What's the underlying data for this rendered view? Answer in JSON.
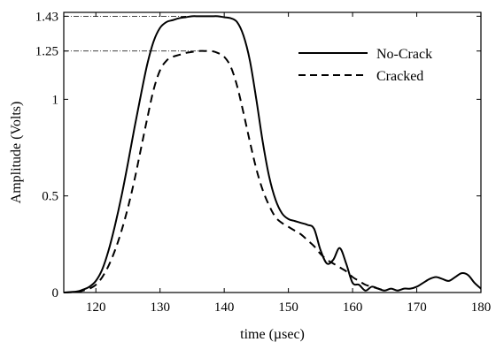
{
  "chart_data": {
    "type": "line",
    "title": "",
    "xlabel": "time (µsec)",
    "ylabel": "Amplitude  (Volts)",
    "xlim": [
      115,
      180
    ],
    "ylim": [
      0,
      1.45
    ],
    "grid": false,
    "legend_position": "top-right",
    "x_ticks": [
      {
        "value": 120,
        "label": "120"
      },
      {
        "value": 130,
        "label": "130"
      },
      {
        "value": 140,
        "label": "140"
      },
      {
        "value": 150,
        "label": "150"
      },
      {
        "value": 160,
        "label": "160"
      },
      {
        "value": 170,
        "label": "170"
      },
      {
        "value": 180,
        "label": "180"
      }
    ],
    "y_ticks": [
      {
        "value": 0,
        "label": "0"
      },
      {
        "value": 0.5,
        "label": "0.5"
      },
      {
        "value": 1,
        "label": "1"
      },
      {
        "value": 1.25,
        "label": "1.25"
      },
      {
        "value": 1.43,
        "label": "1.43"
      }
    ],
    "annotations": [
      {
        "y": 1.43,
        "x_end": 137
      },
      {
        "y": 1.25,
        "x_end": 137
      }
    ],
    "series": [
      {
        "name": "No-Crack",
        "style": "solid",
        "color": "#000000",
        "x": [
          115,
          117,
          118,
          119,
          120,
          121,
          122,
          123,
          124,
          125,
          126,
          127,
          128,
          129,
          130,
          131,
          132,
          133,
          134,
          135,
          136,
          137,
          138,
          139,
          140,
          141,
          142,
          143,
          144,
          145,
          146,
          147,
          148,
          149,
          150,
          151,
          152,
          153,
          154,
          155,
          156,
          157,
          158,
          159,
          160,
          161,
          162,
          163,
          164,
          165,
          166,
          167,
          168,
          169,
          170,
          171,
          172,
          173,
          174,
          175,
          176,
          177,
          178,
          179,
          180
        ],
        "y": [
          0,
          0.005,
          0.015,
          0.03,
          0.06,
          0.12,
          0.22,
          0.35,
          0.5,
          0.67,
          0.85,
          1.02,
          1.18,
          1.3,
          1.37,
          1.4,
          1.41,
          1.42,
          1.425,
          1.43,
          1.43,
          1.43,
          1.43,
          1.43,
          1.425,
          1.42,
          1.4,
          1.33,
          1.2,
          1.0,
          0.78,
          0.6,
          0.48,
          0.41,
          0.38,
          0.37,
          0.36,
          0.35,
          0.33,
          0.22,
          0.15,
          0.17,
          0.23,
          0.15,
          0.05,
          0.04,
          0.01,
          0.03,
          0.02,
          0.01,
          0.02,
          0.01,
          0.02,
          0.02,
          0.03,
          0.05,
          0.07,
          0.08,
          0.07,
          0.06,
          0.08,
          0.1,
          0.09,
          0.05,
          0.02
        ]
      },
      {
        "name": "Cracked",
        "style": "dashed",
        "color": "#000000",
        "x": [
          115,
          117,
          118,
          119,
          120,
          121,
          122,
          123,
          124,
          125,
          126,
          127,
          128,
          129,
          130,
          131,
          132,
          133,
          134,
          135,
          136,
          137,
          138,
          139,
          140,
          141,
          142,
          143,
          144,
          145,
          146,
          147,
          148,
          149,
          150,
          151,
          152,
          153,
          154,
          155,
          156,
          157,
          158,
          159,
          160,
          161,
          162,
          163,
          164,
          165
        ],
        "y": [
          0,
          0.003,
          0.01,
          0.02,
          0.04,
          0.08,
          0.14,
          0.22,
          0.32,
          0.44,
          0.58,
          0.74,
          0.9,
          1.05,
          1.15,
          1.2,
          1.22,
          1.23,
          1.24,
          1.245,
          1.25,
          1.25,
          1.25,
          1.24,
          1.22,
          1.17,
          1.07,
          0.93,
          0.78,
          0.64,
          0.53,
          0.45,
          0.39,
          0.36,
          0.34,
          0.32,
          0.3,
          0.27,
          0.24,
          0.2,
          0.17,
          0.15,
          0.13,
          0.11,
          0.08,
          0.06,
          0.04,
          0.03,
          0.02,
          0.01
        ]
      }
    ]
  }
}
